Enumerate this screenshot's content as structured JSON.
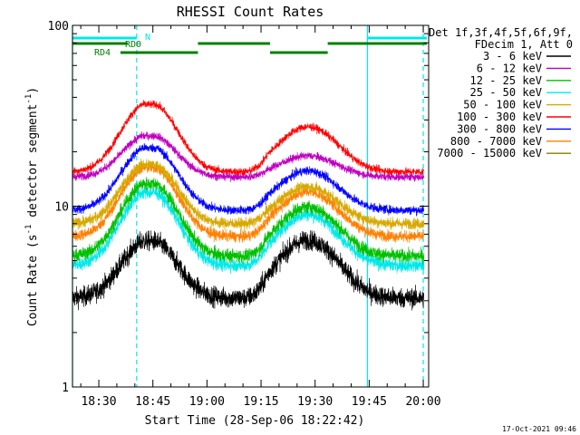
{
  "chart_data": {
    "type": "line",
    "title": "RHESSI Count Rates",
    "xlabel": "Start Time (28-Sep-06 18:22:42)",
    "ylabel_parts": [
      "Count Rate (s",
      "-1",
      " detector segment",
      "-1",
      ")"
    ],
    "yscale": "log",
    "ylim": [
      1,
      100
    ],
    "xlim_minutes": [
      22.7,
      121.5
    ],
    "x_tick_labels": [
      "18:30",
      "18:45",
      "19:00",
      "19:15",
      "19:30",
      "19:45",
      "20:00"
    ],
    "x_tick_minutes": [
      30,
      45,
      60,
      75,
      90,
      105,
      120
    ],
    "y_tick_labels": [
      "1",
      "10",
      "100"
    ],
    "y_tick_values": [
      1,
      10,
      100
    ],
    "legend_header": [
      "Det 1f,3f,4f,5f,6f,9f,",
      "FDecim 1, Att 0"
    ],
    "series": [
      {
        "name": "3 - 6 keV",
        "color": "#000000",
        "base": 3.1,
        "flare1": 3.3,
        "flare2": 3.4,
        "noise": 0.09
      },
      {
        "name": "6 - 12 keV",
        "color": "#c000c0",
        "base": 14.5,
        "flare1": 10.0,
        "flare2": 4.5,
        "noise": 0.035
      },
      {
        "name": "12 - 25 keV",
        "color": "#00c000",
        "base": 5.3,
        "flare1": 8.0,
        "flare2": 4.6,
        "noise": 0.06
      },
      {
        "name": "25 - 50 keV",
        "color": "#00e8e8",
        "base": 4.7,
        "flare1": 7.2,
        "flare2": 4.3,
        "noise": 0.06
      },
      {
        "name": "50 - 100 keV",
        "color": "#d8a800",
        "base": 8.0,
        "flare1": 9.0,
        "flare2": 4.8,
        "noise": 0.05
      },
      {
        "name": "100 - 300 keV",
        "color": "#ff0000",
        "base": 15.5,
        "flare1": 21.0,
        "flare2": 12.0,
        "noise": 0.035
      },
      {
        "name": "300 - 800 keV",
        "color": "#0000ff",
        "base": 9.5,
        "flare1": 11.5,
        "flare2": 6.2,
        "noise": 0.04
      },
      {
        "name": "800 - 7000 keV",
        "color": "#ff8000",
        "base": 6.8,
        "flare1": 9.5,
        "flare2": 5.2,
        "noise": 0.05
      },
      {
        "name": "7000 - 15000 keV",
        "color": "#808000",
        "base": 0.0,
        "flare1": 0.0,
        "flare2": 0.0,
        "noise": 0.0
      }
    ],
    "flags": [
      {
        "label": "N",
        "color": "#00e8e8",
        "segments": [
          [
            22.7,
            40.5
          ],
          [
            104.5,
            121
          ]
        ]
      },
      {
        "label": "RD0",
        "color": "#008000",
        "segments": [
          [
            22.7,
            38.0
          ],
          [
            57.5,
            77.5
          ],
          [
            93.5,
            121
          ]
        ]
      },
      {
        "label": "RD4",
        "color": "#008000",
        "segments": [
          [
            36.0,
            57.5
          ],
          [
            77.5,
            93.5
          ]
        ]
      }
    ],
    "vlines": [
      {
        "minute": 22.7,
        "style": "solid"
      },
      {
        "minute": 40.5,
        "style": "dashed"
      },
      {
        "minute": 104.5,
        "style": "solid"
      },
      {
        "minute": 120.0,
        "style": "dashed"
      }
    ],
    "footer_timestamp": "17-Oct-2021 09:46"
  }
}
